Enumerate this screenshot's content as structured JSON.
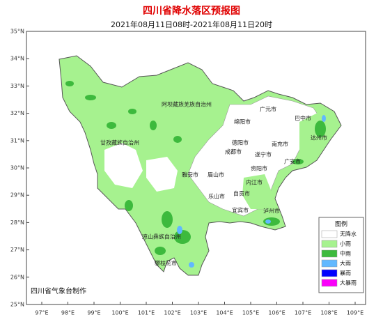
{
  "title": "四川省降水落区预报图",
  "subtitle": "2021年08月11日08时-2021年08月11日20时",
  "lat_labels": [
    "35°N",
    "34°N",
    "33°N",
    "32°N",
    "31°N",
    "30°N",
    "29°N",
    "28°N",
    "27°N",
    "26°N",
    "25°N"
  ],
  "lon_labels": [
    "97°E",
    "98°E",
    "99°E",
    "100°E",
    "101°E",
    "102°E",
    "103°E",
    "104°E",
    "105°E",
    "106°E",
    "107°E",
    "108°E",
    "109°E"
  ],
  "regions": [
    "阿坝藏族羌族自治州",
    "甘孜藏族自治州",
    "广元市",
    "巴中市",
    "绵阳市",
    "达州市",
    "德阳市",
    "南充市",
    "成都市",
    "遂宁市",
    "广安市",
    "雅安市",
    "眉山市",
    "资阳市",
    "内江市",
    "乐山市",
    "自贡市",
    "宜宾市",
    "泸州市",
    "凉山彝族自治州",
    "攀枝花市"
  ],
  "legend": {
    "title": "图例",
    "items": [
      {
        "label": "无降水",
        "color": "#ffffff"
      },
      {
        "label": "小雨",
        "color": "#a6f28f"
      },
      {
        "label": "中雨",
        "color": "#3dba3d"
      },
      {
        "label": "大雨",
        "color": "#61b8ff"
      },
      {
        "label": "暴雨",
        "color": "#0000fe"
      },
      {
        "label": "大暴雨",
        "color": "#fa00fa"
      }
    ]
  },
  "credit": "四川省气象台制作"
}
